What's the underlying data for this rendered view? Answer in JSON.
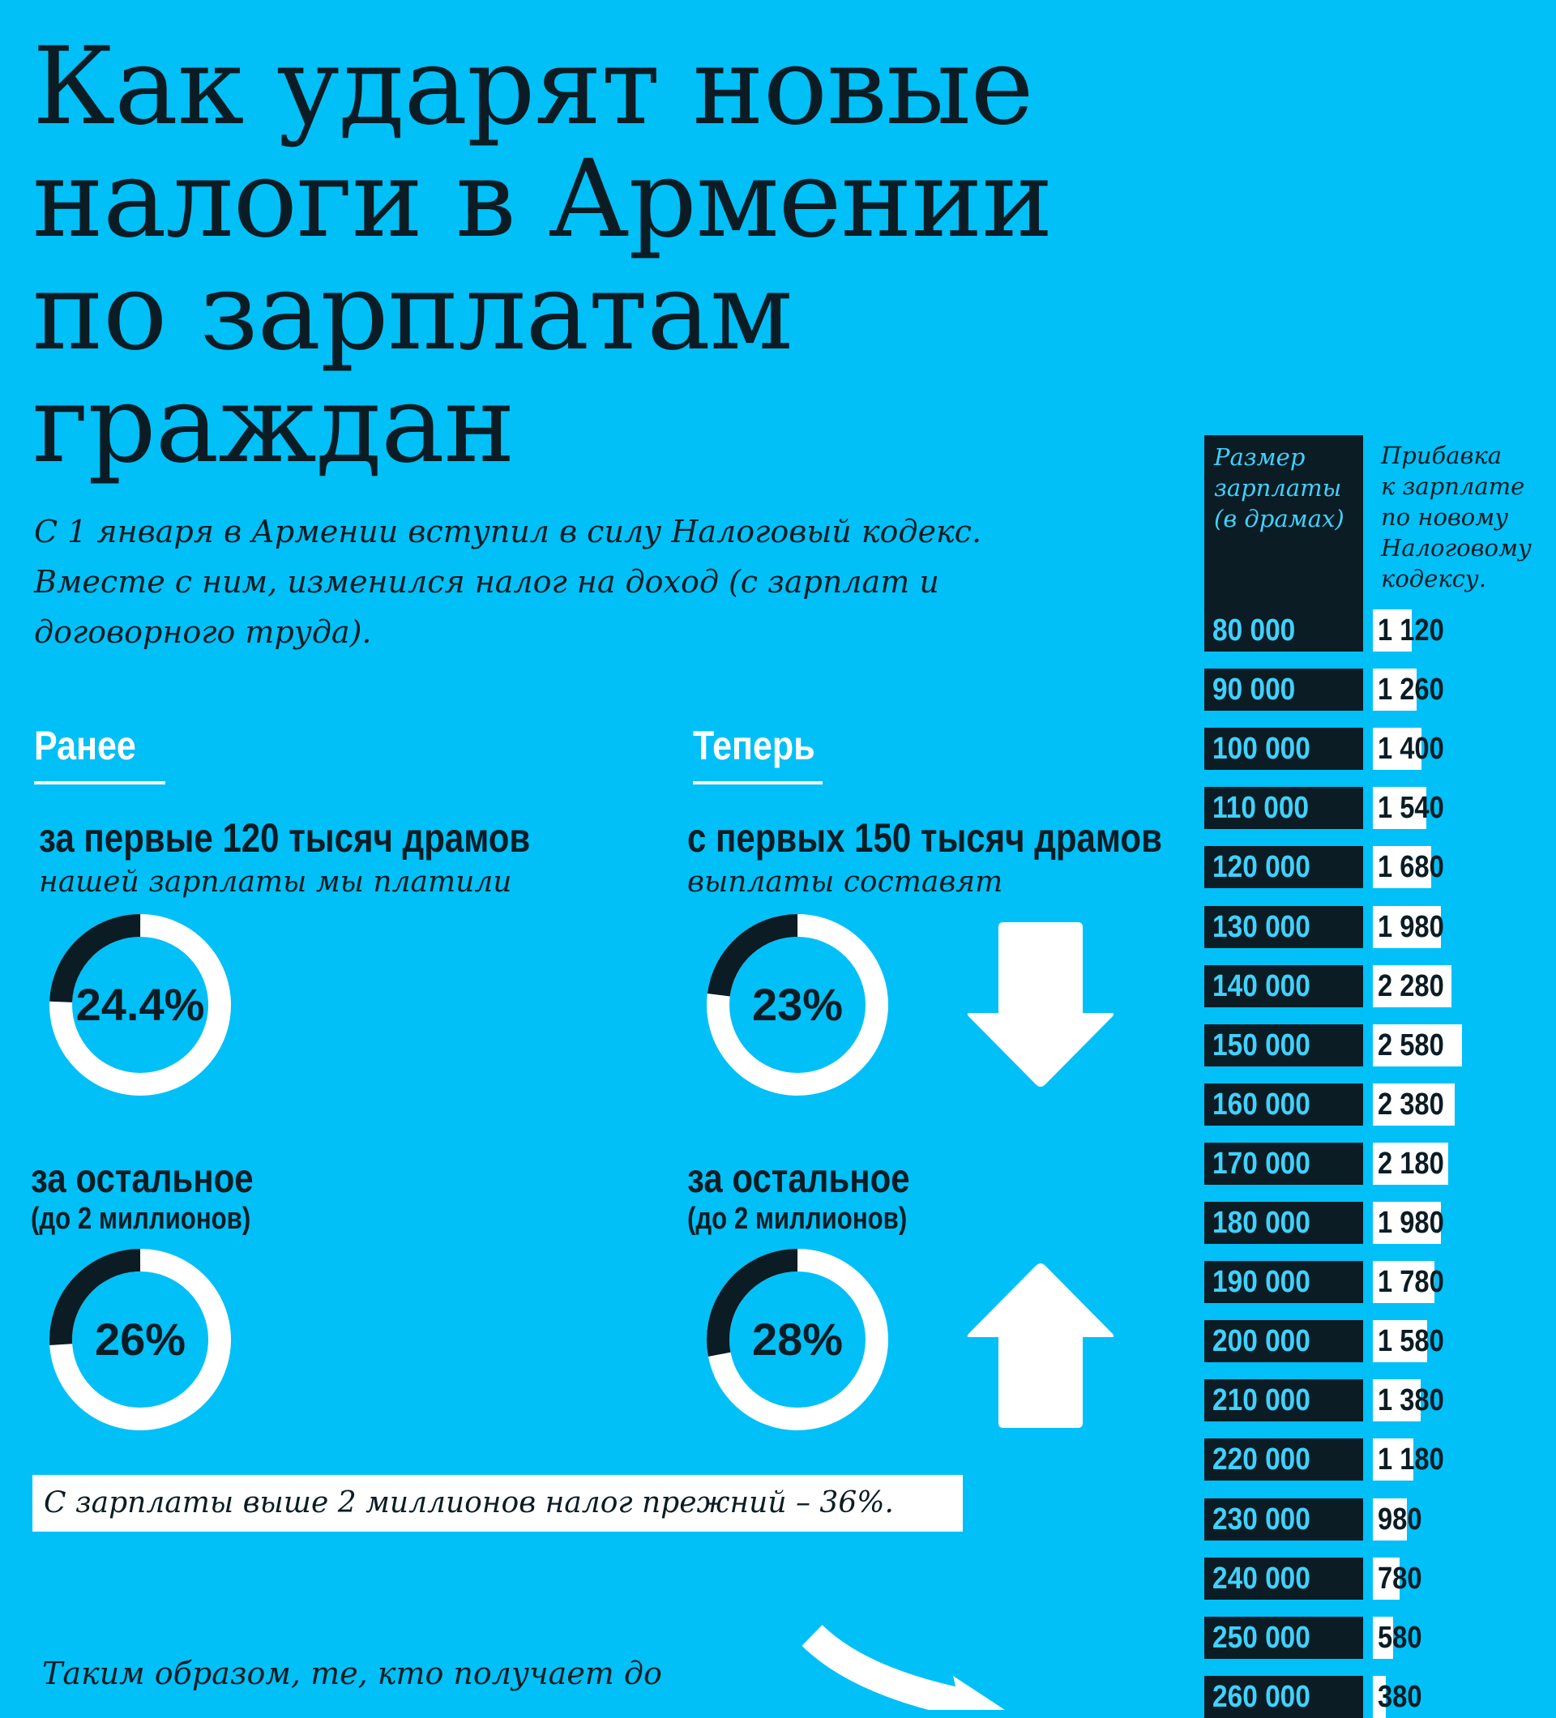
{
  "title": {
    "lines": [
      "Как ударят новые",
      "налоги в Армении",
      "по зарплатам",
      "граждан"
    ]
  },
  "intro": {
    "lines": [
      "С 1 января в Армении вступил в силу Налоговый кодекс.",
      "Вместе с ним, изменился налог на доход (с зарплат и",
      "договорного труда)."
    ]
  },
  "before": {
    "label": "Ранее",
    "first": {
      "heading": "за первые 120 тысяч драмов",
      "subheading": "нашей зарплаты мы платили",
      "percent_label": "24.4%",
      "percent": 24.4
    },
    "rest": {
      "heading": "за остальное",
      "subheading": "(до 2 миллионов)",
      "percent_label": "26%",
      "percent": 26
    }
  },
  "after": {
    "label": "Теперь",
    "first": {
      "heading": "с первых 150 тысяч драмов",
      "subheading": "выплаты составят",
      "percent_label": "23%",
      "percent": 23,
      "trend": "arrow-down-icon"
    },
    "rest": {
      "heading": "за остальное",
      "subheading": "(до 2 миллионов)",
      "percent_label": "28%",
      "percent": 28,
      "trend": "arrow-up-icon"
    }
  },
  "note": "С зарплаты выше 2 миллионов налог прежний – 36%.",
  "footer": "Таким образом, те, кто получает до",
  "table": {
    "salary_header": "Размер\nзарплаты\n(в драмах)",
    "bonus_header": "Прибавка\nк зарплате\nпо новому\nНалоговому\nкодексу.",
    "rows": [
      {
        "salary": "80 000",
        "bonus": "1 120",
        "bonus_value": 1120
      },
      {
        "salary": "90 000",
        "bonus": "1 260",
        "bonus_value": 1260
      },
      {
        "salary": "100 000",
        "bonus": "1 400",
        "bonus_value": 1400
      },
      {
        "salary": "110 000",
        "bonus": "1 540",
        "bonus_value": 1540
      },
      {
        "salary": "120 000",
        "bonus": "1 680",
        "bonus_value": 1680
      },
      {
        "salary": "130 000",
        "bonus": "1 980",
        "bonus_value": 1980
      },
      {
        "salary": "140 000",
        "bonus": "2 280",
        "bonus_value": 2280
      },
      {
        "salary": "150 000",
        "bonus": "2 580",
        "bonus_value": 2580
      },
      {
        "salary": "160 000",
        "bonus": "2 380",
        "bonus_value": 2380
      },
      {
        "salary": "170 000",
        "bonus": "2 180",
        "bonus_value": 2180
      },
      {
        "salary": "180 000",
        "bonus": "1 980",
        "bonus_value": 1980
      },
      {
        "salary": "190 000",
        "bonus": "1 780",
        "bonus_value": 1780
      },
      {
        "salary": "200 000",
        "bonus": "1 580",
        "bonus_value": 1580
      },
      {
        "salary": "210 000",
        "bonus": "1 380",
        "bonus_value": 1380
      },
      {
        "salary": "220 000",
        "bonus": "1 180",
        "bonus_value": 1180
      },
      {
        "salary": "230 000",
        "bonus": "980",
        "bonus_value": 980
      },
      {
        "salary": "240 000",
        "bonus": "780",
        "bonus_value": 780
      },
      {
        "salary": "250 000",
        "bonus": "580",
        "bonus_value": 580
      },
      {
        "salary": "260 000",
        "bonus": "380",
        "bonus_value": 380
      }
    ]
  },
  "colors": {
    "background": "#00c0f7",
    "dark": "#0b1c24",
    "white": "#ffffff",
    "salary_text": "#3fd2ff"
  }
}
